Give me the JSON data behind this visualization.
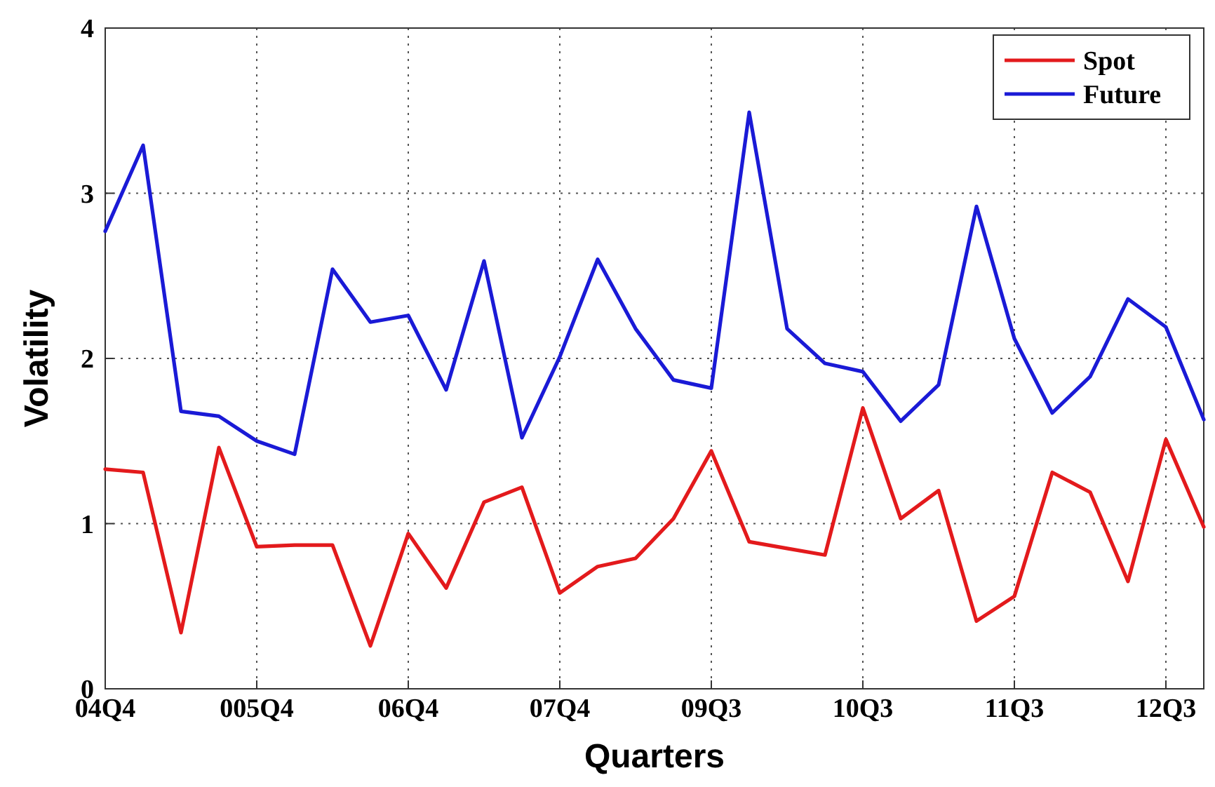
{
  "chart_data": {
    "type": "line",
    "xlabel": "Quarters",
    "ylabel": "Volatility",
    "categories": [
      "04Q4",
      null,
      null,
      null,
      "005Q4",
      null,
      null,
      null,
      "06Q4",
      null,
      null,
      null,
      "07Q4",
      null,
      null,
      null,
      "09Q3",
      null,
      null,
      null,
      "10Q3",
      null,
      null,
      null,
      "11Q3",
      null,
      null,
      null,
      "12Q3",
      null
    ],
    "ylim": [
      0,
      4
    ],
    "yticks": [
      0,
      1,
      2,
      3,
      4
    ],
    "grid": true,
    "legend": "top right",
    "line_style": "solid",
    "marker": "none",
    "series": [
      {
        "name": "Spot",
        "color": "#e31a1c",
        "values": [
          1.33,
          1.31,
          0.34,
          1.46,
          0.86,
          0.87,
          0.87,
          0.26,
          0.94,
          0.61,
          1.13,
          1.22,
          0.58,
          0.74,
          0.79,
          1.03,
          1.44,
          0.89,
          0.85,
          0.81,
          1.7,
          1.03,
          1.2,
          0.41,
          0.56,
          1.31,
          1.19,
          0.65,
          1.51,
          0.98
        ]
      },
      {
        "name": "Future",
        "color": "#1a1ad6",
        "values": [
          2.77,
          3.29,
          1.68,
          1.65,
          1.5,
          1.42,
          2.54,
          2.22,
          2.26,
          1.81,
          2.59,
          1.52,
          2.01,
          2.6,
          2.18,
          1.87,
          1.82,
          3.49,
          2.18,
          1.97,
          1.92,
          1.62,
          1.84,
          2.92,
          2.12,
          1.67,
          1.89,
          2.36,
          2.19,
          1.63
        ]
      }
    ]
  }
}
